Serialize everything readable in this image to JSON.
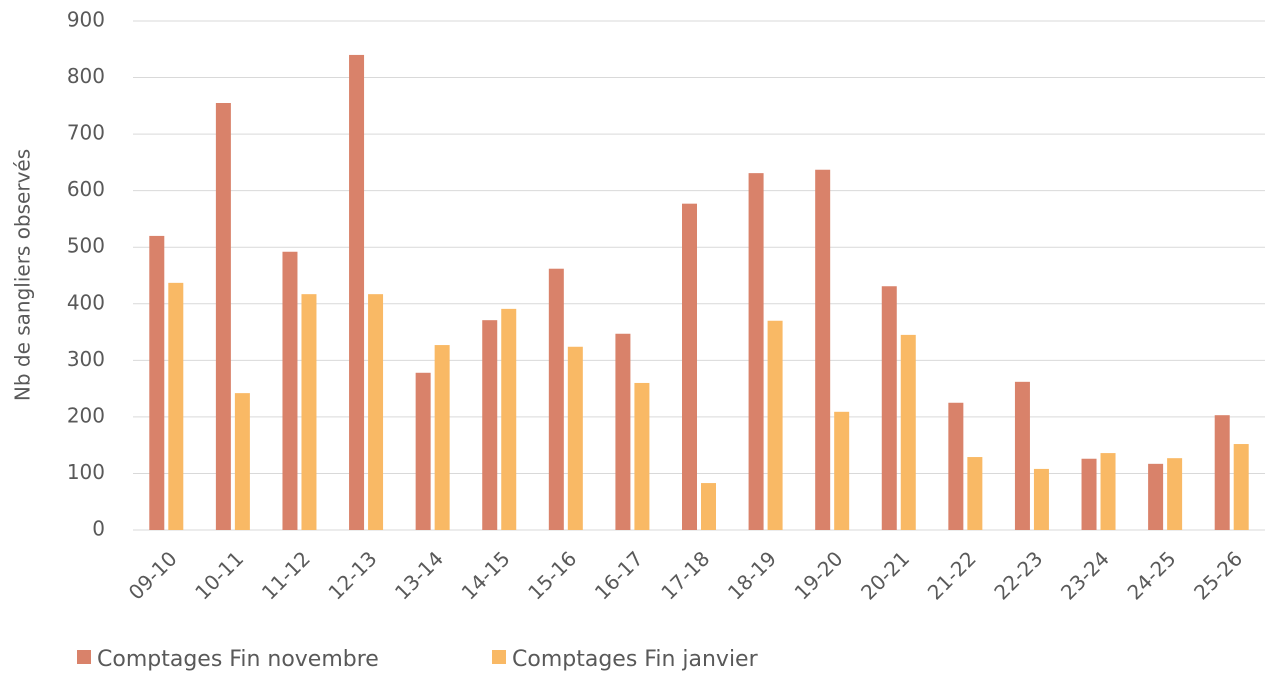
{
  "chart_data": {
    "type": "bar",
    "y_label": "Nb de sangliers observés",
    "categories": [
      "09-10",
      "10-11",
      "11-12",
      "12-13",
      "13-14",
      "14-15",
      "15-16",
      "16-17",
      "17-18",
      "18-19",
      "19-20",
      "20-21",
      "21-22",
      "22-23",
      "23-24",
      "24-25",
      "25-26"
    ],
    "series": [
      {
        "name": "Comptages Fin novembre",
        "color": "#d9826a",
        "values": [
          520,
          755,
          492,
          840,
          278,
          371,
          462,
          347,
          577,
          631,
          637,
          431,
          225,
          262,
          126,
          117,
          203
        ]
      },
      {
        "name": "Comptages Fin janvier",
        "color": "#f9b965",
        "values": [
          437,
          242,
          417,
          417,
          327,
          391,
          324,
          260,
          83,
          370,
          209,
          345,
          129,
          108,
          136,
          127,
          152
        ]
      }
    ],
    "ylim": [
      0,
      900
    ],
    "yticks": [
      0,
      100,
      200,
      300,
      400,
      500,
      600,
      700,
      800,
      900
    ],
    "grid": true,
    "legend": "bottom"
  }
}
